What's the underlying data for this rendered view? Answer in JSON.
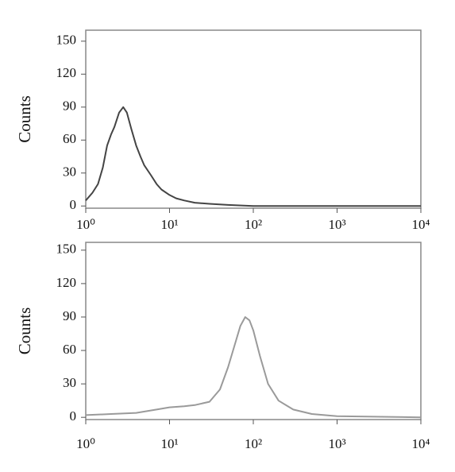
{
  "chart_data": [
    {
      "type": "line",
      "ylabel": "Counts",
      "xscale": "log",
      "grid": false,
      "color": "#444444",
      "x": [
        1,
        1.2,
        1.4,
        1.6,
        1.8,
        2,
        2.2,
        2.5,
        2.8,
        3.1,
        3.5,
        4,
        4.5,
        5,
        6,
        7,
        8,
        10,
        12,
        15,
        20,
        30,
        50,
        100,
        1000,
        10000
      ],
      "values": [
        5,
        12,
        20,
        35,
        55,
        65,
        72,
        85,
        90,
        85,
        70,
        55,
        45,
        37,
        28,
        20,
        15,
        10,
        7,
        5,
        3,
        2,
        1,
        0,
        0,
        0
      ],
      "xlim": [
        1,
        10000
      ],
      "xticks": [
        {
          "value": 1,
          "label": "10⁰"
        },
        {
          "value": 10,
          "label": "10¹"
        },
        {
          "value": 100,
          "label": "10²"
        },
        {
          "value": 1000,
          "label": "10³"
        },
        {
          "value": 10000,
          "label": "10⁴"
        }
      ],
      "ylim": [
        -2,
        160
      ],
      "yticks": [
        0,
        30,
        60,
        90,
        120,
        150
      ]
    },
    {
      "type": "line",
      "ylabel": "Counts",
      "xscale": "log",
      "grid": false,
      "color": "#9a9a9a",
      "x": [
        1,
        2,
        4,
        7,
        10,
        15,
        20,
        30,
        40,
        50,
        60,
        70,
        80,
        90,
        100,
        120,
        150,
        200,
        300,
        500,
        1000,
        10000
      ],
      "values": [
        2,
        3,
        4,
        7,
        9,
        10,
        11,
        14,
        25,
        45,
        65,
        82,
        90,
        87,
        78,
        55,
        30,
        15,
        7,
        3,
        1,
        0
      ],
      "xlim": [
        1,
        10000
      ],
      "xticks": [
        {
          "value": 1,
          "label": "10⁰"
        },
        {
          "value": 10,
          "label": "10¹"
        },
        {
          "value": 100,
          "label": "10²"
        },
        {
          "value": 1000,
          "label": "10³"
        },
        {
          "value": 10000,
          "label": "10⁴"
        }
      ],
      "ylim": [
        -2,
        157
      ],
      "yticks": [
        0,
        30,
        60,
        90,
        120,
        150
      ]
    }
  ]
}
